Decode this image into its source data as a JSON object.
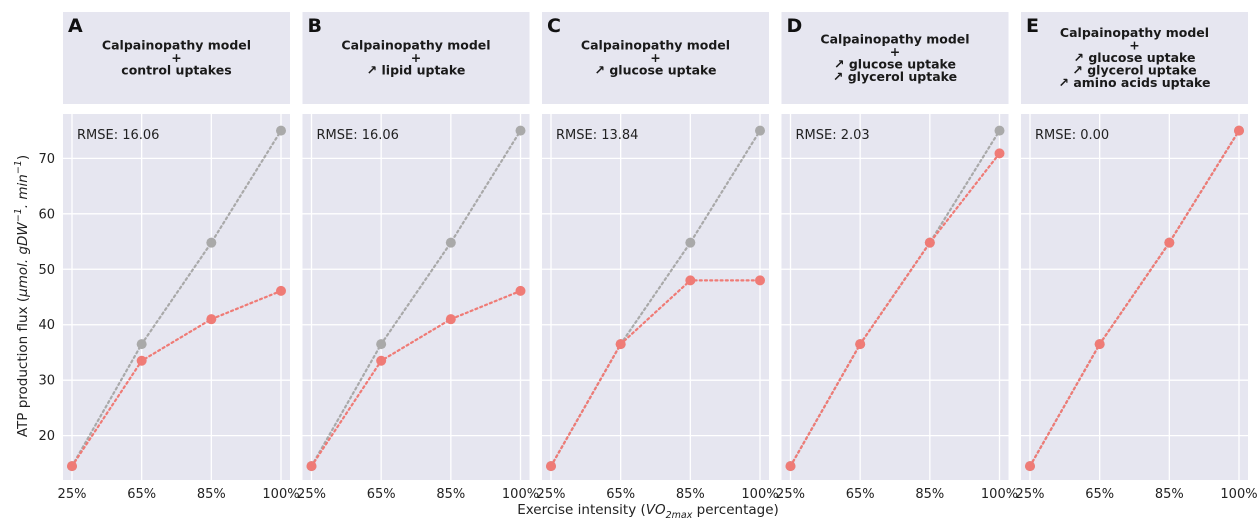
{
  "figure": {
    "xlabel": "Exercise intensity (VO2max percentage)",
    "xlabel_parts": {
      "pre": "Exercise intensity (",
      "var": "VO",
      "sub": "2max",
      "post": " percentage)"
    },
    "ylabel": "ATP production flux (μmol. gDW−1. min−1)",
    "ylabel_parts": {
      "pre": "ATP production flux (",
      "a": "μmol. gDW",
      "sup1": "−1",
      "b": ". min",
      "sup2": "−1",
      "post": ")"
    }
  },
  "colors": {
    "panel_bg": "#e6e6f0",
    "grid": "#ffffff",
    "reference": "#a9a9a9",
    "model": "#ef7b76"
  },
  "chart_data": [
    {
      "type": "line",
      "panel": "A",
      "title_lines": [
        "Calpainopathy model",
        "+",
        "control uptakes"
      ],
      "annotation": "RMSE: 16.06",
      "categories": [
        "25%",
        "65%",
        "85%",
        "100%"
      ],
      "series": [
        {
          "role": "reference",
          "values": [
            14.5,
            36.5,
            54.8,
            75.0
          ]
        },
        {
          "role": "model",
          "values": [
            14.5,
            33.5,
            41.0,
            46.1
          ]
        }
      ],
      "yticks": [
        20,
        30,
        40,
        50,
        60,
        70
      ],
      "ylim": [
        12,
        78
      ],
      "grid": true
    },
    {
      "type": "line",
      "panel": "B",
      "title_lines": [
        "Calpainopathy model",
        "+",
        "↗ lipid uptake"
      ],
      "annotation": "RMSE: 16.06",
      "categories": [
        "25%",
        "65%",
        "85%",
        "100%"
      ],
      "series": [
        {
          "role": "reference",
          "values": [
            14.5,
            36.5,
            54.8,
            75.0
          ]
        },
        {
          "role": "model",
          "values": [
            14.5,
            33.5,
            41.0,
            46.1
          ]
        }
      ],
      "ylim": [
        12,
        78
      ],
      "grid": true
    },
    {
      "type": "line",
      "panel": "C",
      "title_lines": [
        "Calpainopathy model",
        "+",
        "↗ glucose uptake"
      ],
      "annotation": "RMSE: 13.84",
      "categories": [
        "25%",
        "65%",
        "85%",
        "100%"
      ],
      "series": [
        {
          "role": "reference",
          "values": [
            14.5,
            36.5,
            54.8,
            75.0
          ]
        },
        {
          "role": "model",
          "values": [
            14.5,
            36.5,
            48.0,
            48.0
          ]
        }
      ],
      "ylim": [
        12,
        78
      ],
      "grid": true
    },
    {
      "type": "line",
      "panel": "D",
      "title_lines": [
        "Calpainopathy model",
        "+",
        "↗ glucose uptake",
        "↗ glycerol uptake"
      ],
      "annotation": "RMSE: 2.03",
      "categories": [
        "25%",
        "65%",
        "85%",
        "100%"
      ],
      "series": [
        {
          "role": "reference",
          "values": [
            14.5,
            36.5,
            54.8,
            75.0
          ]
        },
        {
          "role": "model",
          "values": [
            14.5,
            36.5,
            54.8,
            70.9
          ]
        }
      ],
      "ylim": [
        12,
        78
      ],
      "grid": true
    },
    {
      "type": "line",
      "panel": "E",
      "title_lines": [
        "Calpainopathy model",
        "+",
        "↗ glucose uptake",
        "↗ glycerol uptake",
        "↗ amino acids uptake"
      ],
      "annotation": "RMSE: 0.00",
      "categories": [
        "25%",
        "65%",
        "85%",
        "100%"
      ],
      "series": [
        {
          "role": "reference",
          "values": [
            14.5,
            36.5,
            54.8,
            75.0
          ]
        },
        {
          "role": "model",
          "values": [
            14.5,
            36.5,
            54.8,
            75.0
          ]
        }
      ],
      "ylim": [
        12,
        78
      ],
      "grid": true
    }
  ]
}
